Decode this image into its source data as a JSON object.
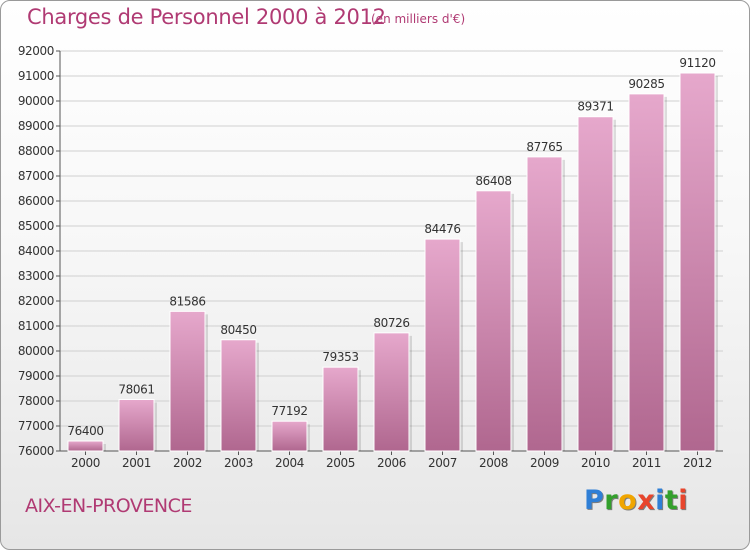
{
  "header": {
    "title": "Charges de Personnel 2000 à 2012",
    "subtitle": "(en milliers d'€)"
  },
  "footer": {
    "city": "AIX-EN-PROVENCE",
    "logo_letters": [
      {
        "char": "P",
        "color": "#2f7fd6"
      },
      {
        "char": "r",
        "color": "#33a02c"
      },
      {
        "char": "o",
        "color": "#f0a500"
      },
      {
        "char": "x",
        "color": "#e8452c"
      },
      {
        "char": "i",
        "color": "#2f7fd6"
      },
      {
        "char": "t",
        "color": "#33a02c"
      },
      {
        "char": "i",
        "color": "#e8452c"
      }
    ]
  },
  "colors": {
    "title": "#b03a73",
    "bar_top": "#e6a8cc",
    "bar_bottom": "#b0678f",
    "grid": "#d0d0d0"
  },
  "chart_data": {
    "type": "bar",
    "title": "Charges de Personnel 2000 à 2012",
    "subtitle": "(en milliers d'€)",
    "xlabel": "",
    "ylabel": "",
    "categories": [
      "2000",
      "2001",
      "2002",
      "2003",
      "2004",
      "2005",
      "2006",
      "2007",
      "2008",
      "2009",
      "2010",
      "2011",
      "2012"
    ],
    "values": [
      76400,
      78061,
      81586,
      80450,
      77192,
      79353,
      80726,
      84476,
      86408,
      87765,
      89371,
      90285,
      91120
    ],
    "ylim": [
      76000,
      92000
    ],
    "yticks": [
      76000,
      77000,
      78000,
      79000,
      80000,
      81000,
      82000,
      83000,
      84000,
      85000,
      86000,
      87000,
      88000,
      89000,
      90000,
      91000,
      92000
    ],
    "grid": true,
    "legend": "none"
  }
}
